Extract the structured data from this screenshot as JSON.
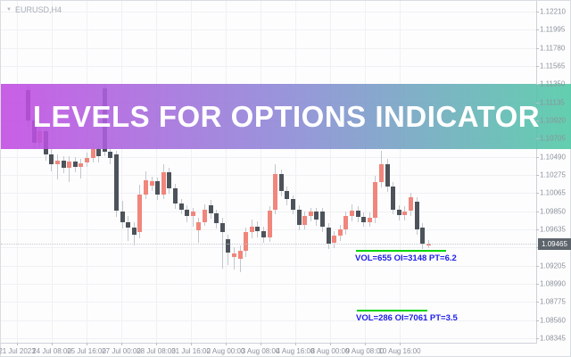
{
  "window": {
    "title": "EURUSD,H4",
    "collapse_icon": "▼"
  },
  "banner": {
    "text": "LEVELS FOR OPTIONS INDICATOR",
    "color_left": "#c249e3",
    "color_mid": "#8b87d6",
    "color_right": "#4dc9a4",
    "text_color": "#ffffff"
  },
  "chart_data": {
    "type": "candlestick",
    "title": "EURUSD,H4",
    "symbol": "EURUSD",
    "timeframe": "H4",
    "grid": true,
    "y_axis": {
      "side": "right",
      "labels": [
        "1.12210",
        "1.11995",
        "1.11780",
        "1.11565",
        "1.11350",
        "1.11135",
        "1.10920",
        "1.10705",
        "1.10490",
        "1.10275",
        "1.10065",
        "1.09850",
        "1.09635",
        "1.09420",
        "1.09205",
        "1.08990",
        "1.08775",
        "1.08560",
        "1.08345"
      ],
      "range": [
        1.08345,
        1.1221
      ],
      "current_price": "1.09465"
    },
    "x_axis": {
      "labels": [
        "21 Jul 2023",
        "24 Jul 08:00",
        "25 Jul 16:00",
        "27 Jul 00:00",
        "28 Jul 08:00",
        "31 Jul 16:00",
        "2 Aug 00:00",
        "3 Aug 08:00",
        "4 Aug 16:00",
        "8 Aug 00:00",
        "9 Aug 08:00",
        "10 Aug 16:00"
      ]
    },
    "colors": {
      "bull": "#f0867c",
      "bear": "#4d535a",
      "wick": "#c2c7cd",
      "level_line": "#00d300",
      "annotation_text": "#2020e8",
      "price_tag_bg": "#5d646c"
    },
    "candles": [
      [
        1.1128,
        1.1133,
        1.1085,
        1.1092,
        0
      ],
      [
        1.1092,
        1.1098,
        1.1058,
        1.1066,
        0
      ],
      [
        1.1066,
        1.1086,
        1.106,
        1.108,
        1
      ],
      [
        1.108,
        1.1084,
        1.1045,
        1.1052,
        0
      ],
      [
        1.1052,
        1.1058,
        1.1032,
        1.104,
        0
      ],
      [
        1.104,
        1.1052,
        1.1022,
        1.1045,
        1
      ],
      [
        1.1045,
        1.105,
        1.103,
        1.1036,
        0
      ],
      [
        1.1036,
        1.105,
        1.1019,
        1.1044,
        1
      ],
      [
        1.1044,
        1.1049,
        1.1031,
        1.1037,
        0
      ],
      [
        1.1037,
        1.1047,
        1.1024,
        1.1042,
        1
      ],
      [
        1.1042,
        1.1054,
        1.1037,
        1.1048,
        1
      ],
      [
        1.1048,
        1.1066,
        1.1043,
        1.1058,
        1
      ],
      [
        1.1058,
        1.1063,
        1.1042,
        1.105,
        0
      ],
      [
        1.113,
        1.1136,
        1.105,
        1.1055,
        0
      ],
      [
        1.1055,
        1.106,
        1.104,
        1.1048,
        0
      ],
      [
        1.1052,
        1.1056,
        1.0978,
        1.0985,
        0
      ],
      [
        1.0985,
        1.0997,
        1.0964,
        1.0972,
        0
      ],
      [
        1.0972,
        1.0979,
        1.095,
        1.0965,
        0
      ],
      [
        1.0965,
        1.0972,
        1.0944,
        1.0957,
        0
      ],
      [
        1.096,
        1.1016,
        1.0953,
        1.1005,
        1
      ],
      [
        1.1005,
        1.1032,
        1.0999,
        1.1021,
        1
      ],
      [
        1.1015,
        1.1026,
        1.1009,
        1.102,
        1
      ],
      [
        1.102,
        1.1025,
        1.0998,
        1.1004,
        0
      ],
      [
        1.1004,
        1.104,
        1.0999,
        1.1031,
        1
      ],
      [
        1.1031,
        1.1036,
        1.1006,
        1.1012,
        0
      ],
      [
        1.1012,
        1.1017,
        1.0988,
        1.0994,
        0
      ],
      [
        1.0994,
        1.0999,
        1.0981,
        1.0987,
        0
      ],
      [
        1.0987,
        1.0992,
        1.0972,
        1.0979,
        0
      ],
      [
        1.0979,
        1.0989,
        1.0966,
        1.0984,
        1
      ],
      [
        1.0962,
        1.0977,
        1.0948,
        1.0972,
        1
      ],
      [
        1.0972,
        1.0993,
        1.0967,
        1.0987,
        1
      ],
      [
        1.0992,
        1.0998,
        1.0976,
        1.0982,
        0
      ],
      [
        1.0982,
        1.0987,
        1.0964,
        1.0971,
        0
      ],
      [
        1.0971,
        1.0977,
        1.0917,
        1.096,
        0
      ],
      [
        1.0952,
        1.0957,
        1.0921,
        1.0936,
        0
      ],
      [
        1.093,
        1.0942,
        1.0916,
        1.0935,
        1
      ],
      [
        1.0929,
        1.0944,
        1.0913,
        1.0938,
        1
      ],
      [
        1.0938,
        1.0966,
        1.0931,
        1.096,
        1
      ],
      [
        1.096,
        1.0975,
        1.0953,
        1.0967,
        1
      ],
      [
        1.0967,
        1.0973,
        1.0954,
        1.0961,
        0
      ],
      [
        1.0961,
        1.0967,
        1.0947,
        1.0954,
        0
      ],
      [
        1.0954,
        1.0991,
        1.0948,
        1.0986,
        1
      ],
      [
        1.0986,
        1.1041,
        1.0981,
        1.1029,
        1
      ],
      [
        1.1029,
        1.1034,
        1.1002,
        1.1009,
        0
      ],
      [
        1.1009,
        1.1014,
        1.0992,
        1.0999,
        0
      ],
      [
        1.0999,
        1.1004,
        1.0981,
        1.0987,
        0
      ],
      [
        1.0987,
        1.0992,
        1.0962,
        1.0969,
        0
      ],
      [
        1.0969,
        1.0985,
        1.0963,
        1.0979,
        1
      ],
      [
        1.0979,
        1.0989,
        1.0973,
        1.0984,
        1
      ],
      [
        1.0984,
        1.0989,
        1.0968,
        1.0975,
        0
      ],
      [
        1.0984,
        1.0989,
        1.096,
        1.0966,
        0
      ],
      [
        1.0966,
        1.0971,
        1.094,
        1.0947,
        0
      ],
      [
        1.0947,
        1.0961,
        1.0941,
        1.0956,
        1
      ],
      [
        1.0956,
        1.0969,
        1.095,
        1.0963,
        1
      ],
      [
        1.0963,
        1.0985,
        1.0957,
        1.0979,
        1
      ],
      [
        1.0979,
        1.0993,
        1.0973,
        1.0986,
        1
      ],
      [
        1.0986,
        1.0991,
        1.0972,
        1.0978,
        0
      ],
      [
        1.0978,
        1.0983,
        1.0966,
        1.0972,
        0
      ],
      [
        1.0972,
        1.0983,
        1.0967,
        1.0977,
        1
      ],
      [
        1.0977,
        1.1027,
        1.0971,
        1.1019,
        1
      ],
      [
        1.1019,
        1.1056,
        1.1013,
        1.1041,
        1
      ],
      [
        1.1041,
        1.1047,
        1.1008,
        1.1014,
        0
      ],
      [
        1.1014,
        1.1019,
        1.0981,
        1.0987,
        0
      ],
      [
        1.0987,
        1.0992,
        1.0974,
        1.098,
        0
      ],
      [
        1.098,
        1.0991,
        1.0974,
        1.0985,
        1
      ],
      [
        1.0985,
        1.1007,
        1.0979,
        1.1001,
        1
      ],
      [
        1.0996,
        1.1001,
        1.0957,
        1.0963,
        0
      ],
      [
        1.0966,
        1.0971,
        1.094,
        1.0946,
        0
      ],
      [
        1.0944,
        1.0951,
        1.0941,
        1.0947,
        1
      ]
    ],
    "annotations": [
      {
        "label": "VOL=655 OI=3148 PT=6.2",
        "level_price": 1.0939
      },
      {
        "label": "VOL=286 OI=7061 PT=3.5",
        "level_price": 1.0868
      }
    ]
  }
}
